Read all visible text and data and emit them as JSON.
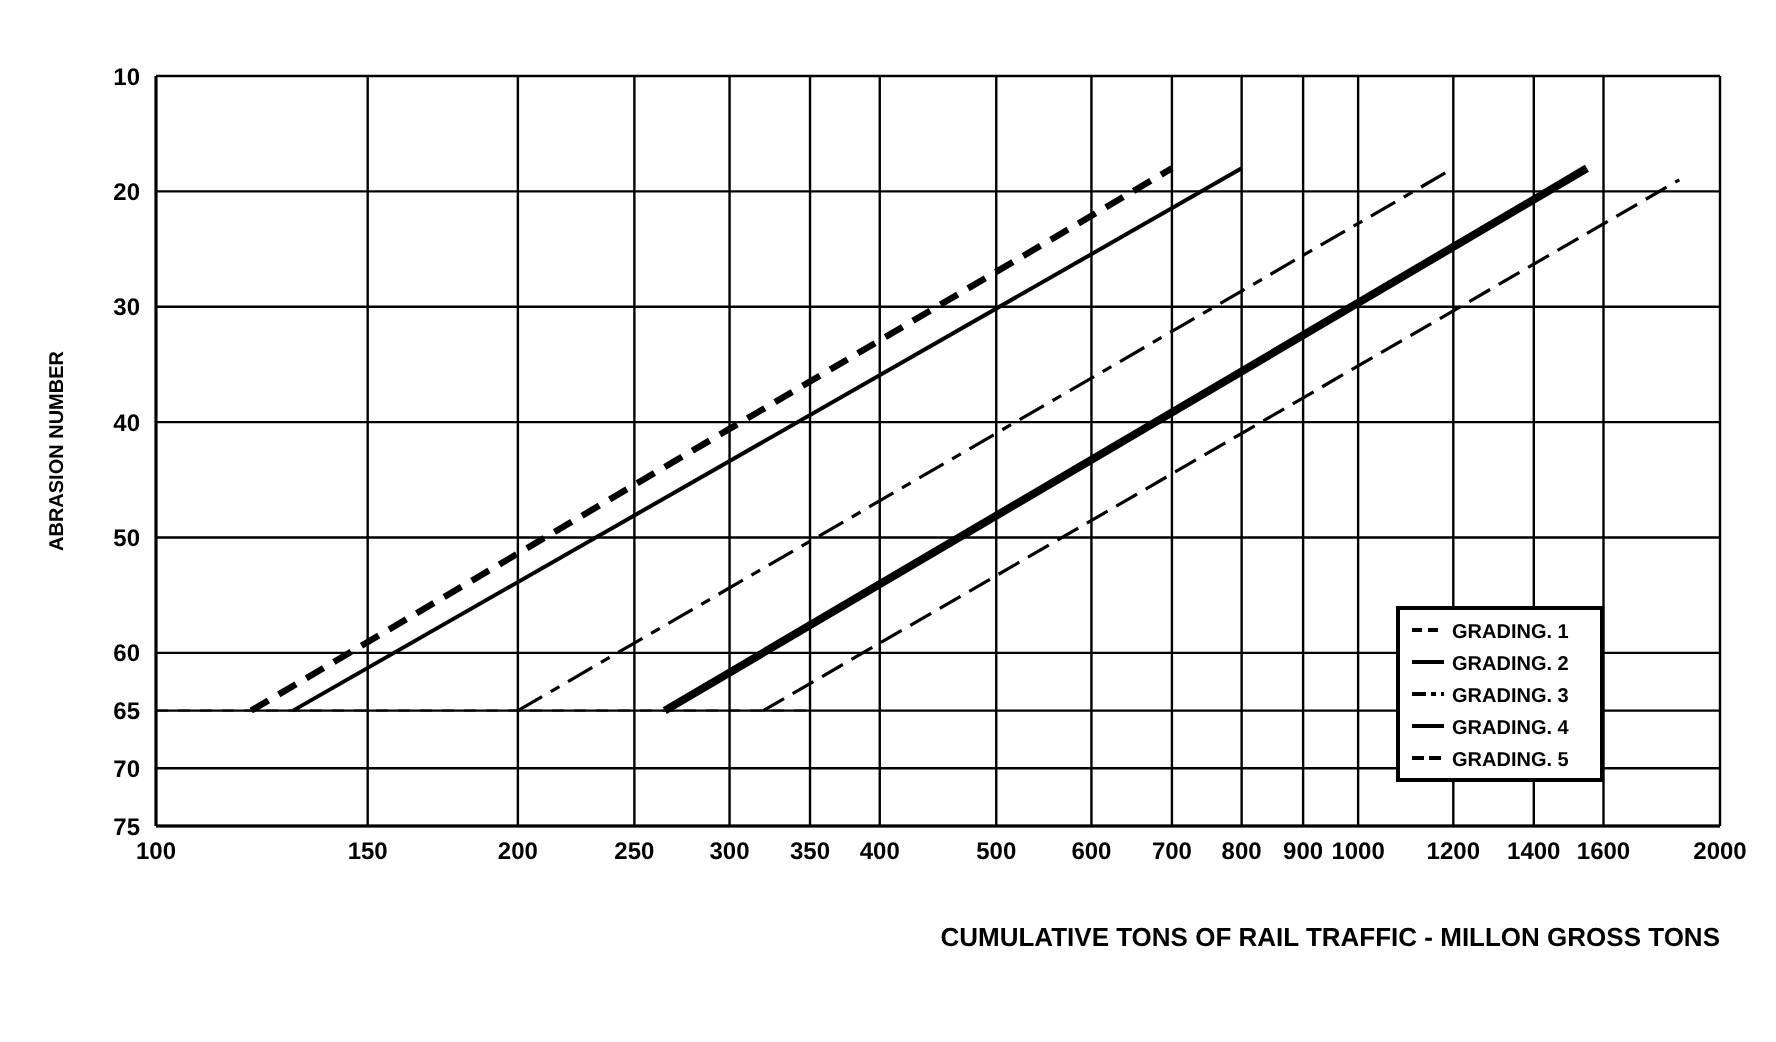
{
  "chart_data": {
    "type": "line",
    "xlabel": "CUMULATIVE TONS OF RAIL TRAFFIC - MILLON GROSS TONS",
    "ylabel": "ABRASION NUMBER",
    "log": "x",
    "xlim": [
      100,
      2000
    ],
    "xticks": [
      100,
      150,
      200,
      250,
      300,
      350,
      400,
      500,
      600,
      700,
      800,
      900,
      1000,
      1200,
      1400,
      1600,
      2000
    ],
    "ylim": [
      75,
      10
    ],
    "yticks": [
      10,
      20,
      30,
      40,
      50,
      60,
      65,
      70,
      75
    ],
    "grid": true,
    "legend": "bottom right",
    "marker": "none",
    "series": [
      {
        "name": "GRADING. 1",
        "color": "#000000",
        "x": [
          120,
          700
        ],
        "values": [
          65,
          18
        ],
        "line_style": "dashed"
      },
      {
        "name": "GRADING. 2",
        "color": "#000000",
        "x": [
          130,
          800
        ],
        "values": [
          65,
          18
        ],
        "line_style": "solid"
      },
      {
        "name": "GRADING. 3",
        "color": "#000000",
        "x": [
          200,
          1200
        ],
        "values": [
          65,
          18
        ],
        "line_style": "dashed"
      },
      {
        "name": "GRADING. 4",
        "color": "#000000",
        "x": [
          265,
          1550
        ],
        "values": [
          65,
          18
        ],
        "line_style": "solid"
      },
      {
        "name": "GRADING. 5",
        "color": "#000000",
        "x": [
          320,
          1850
        ],
        "values": [
          65,
          19
        ],
        "line_style": "dashed"
      },
      {
        "color": "#000000",
        "x": [
          100,
          350
        ],
        "values": [
          65,
          65
        ],
        "line_style": "dashed"
      }
    ]
  }
}
